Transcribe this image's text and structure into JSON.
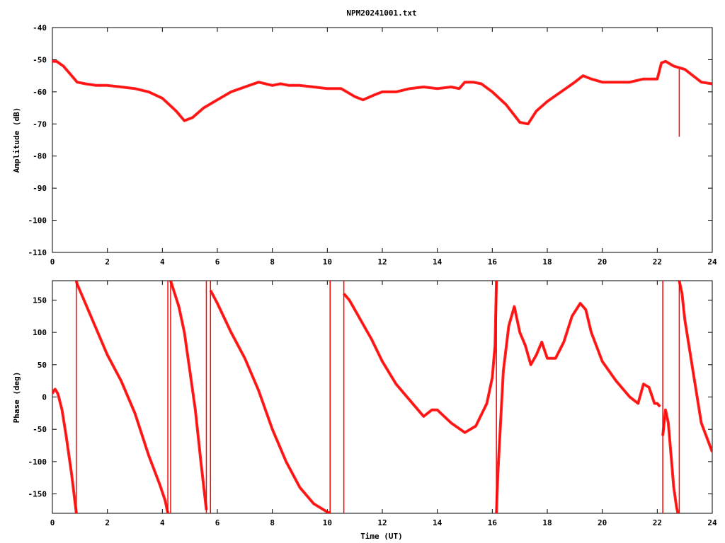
{
  "title": "NPM20241001.txt",
  "chart_data": [
    {
      "type": "line",
      "title": "NPM20241001.txt",
      "xlabel": "",
      "ylabel": "Amplitude (dB)",
      "xlim": [
        0,
        24
      ],
      "ylim": [
        -110,
        -40
      ],
      "x_ticks": [
        "0",
        "2",
        "4",
        "6",
        "8",
        "10",
        "12",
        "14",
        "16",
        "18",
        "20",
        "22",
        "24"
      ],
      "y_ticks": [
        "-40",
        "-50",
        "-60",
        "-70",
        "-80",
        "-90",
        "-100",
        "-110"
      ],
      "grid": false,
      "color": "#ff0000",
      "series": [
        {
          "x": [
            0,
            0.15,
            0.4,
            0.7,
            0.9,
            1.2,
            1.6,
            2.0,
            2.5,
            3.0,
            3.5,
            4.0,
            4.5,
            4.8,
            5.1,
            5.5,
            6.0,
            6.5,
            7.0,
            7.5,
            8.0,
            8.3,
            8.6,
            9.0,
            9.5,
            10.0,
            10.5,
            11.0,
            11.3,
            11.7,
            12.0,
            12.5,
            13.0,
            13.5,
            14.0,
            14.5,
            14.8,
            15.0,
            15.3,
            15.6,
            16.0,
            16.5,
            17.0,
            17.3,
            17.6,
            18.0,
            18.5,
            19.0,
            19.3,
            19.6,
            20.0,
            20.5,
            21.0,
            21.5,
            22.0,
            22.15,
            22.3,
            22.6,
            22.8,
            23.0,
            23.3,
            23.6,
            24.0
          ],
          "y": [
            -50.5,
            -50.5,
            -52,
            -55,
            -57,
            -57.5,
            -58,
            -58,
            -58.5,
            -59,
            -60,
            -62,
            -66,
            -69,
            -68,
            -65,
            -62.5,
            -60,
            -58.5,
            -57,
            -58,
            -57.5,
            -58,
            -58,
            -58.5,
            -59,
            -59,
            -61.5,
            -62.5,
            -61,
            -60,
            -60,
            -59,
            -58.5,
            -59,
            -58.5,
            -59,
            -57,
            -57,
            -57.5,
            -60,
            -64,
            -69.5,
            -70,
            -66,
            -63,
            -60,
            -57,
            -55,
            -56,
            -57,
            -57,
            -57,
            -56,
            -56,
            -51,
            -50.5,
            -52,
            -52.5,
            -53,
            -55,
            -57,
            -57.5
          ]
        }
      ],
      "annotations": [
        {
          "x": 22.8,
          "y_from": -53,
          "y_to": -74
        }
      ]
    },
    {
      "type": "line",
      "title": "",
      "xlabel": "Time (UT)",
      "ylabel": "Phase (deg)",
      "xlim": [
        0,
        24
      ],
      "ylim": [
        -180,
        180
      ],
      "x_ticks": [
        "0",
        "2",
        "4",
        "6",
        "8",
        "10",
        "12",
        "14",
        "16",
        "18",
        "20",
        "22",
        "24"
      ],
      "y_ticks": [
        "150",
        "100",
        "50",
        "0",
        "-50",
        "-100",
        "-150"
      ],
      "grid": false,
      "color": "#ff0000",
      "series": [
        {
          "segments": [
            {
              "x": [
                0,
                0.05,
                0.1,
                0.2,
                0.35,
                0.5,
                0.7,
                0.87
              ],
              "y": [
                5,
                10,
                12,
                5,
                -20,
                -60,
                -120,
                -180
              ]
            },
            {
              "x": [
                0.87,
                0.9,
                1.2,
                1.6,
                2.0,
                2.5,
                3.0,
                3.5,
                3.9,
                4.1,
                4.2
              ],
              "y": [
                180,
                175,
                145,
                105,
                65,
                25,
                -25,
                -90,
                -135,
                -160,
                -180
              ]
            },
            {
              "x": [
                4.3,
                4.45,
                4.6,
                4.8,
                5.0,
                5.2,
                5.4,
                5.6
              ],
              "y": [
                180,
                160,
                140,
                100,
                40,
                -20,
                -100,
                -175
              ]
            },
            {
              "x": [
                5.75,
                6.0,
                6.5,
                7.0,
                7.5,
                8.0,
                8.5,
                9.0,
                9.5,
                10.0,
                10.1
              ],
              "y": [
                165,
                145,
                100,
                60,
                10,
                -50,
                -100,
                -140,
                -165,
                -178,
                -180
              ]
            },
            {
              "x": [
                10.6,
                10.8,
                11.2,
                11.6,
                12.0,
                12.5,
                13.0,
                13.5,
                13.8,
                14.0,
                14.5,
                15.0,
                15.4,
                15.8,
                16.0,
                16.1,
                16.15
              ],
              "y": [
                160,
                150,
                120,
                90,
                55,
                20,
                -5,
                -30,
                -20,
                -20,
                -40,
                -55,
                -45,
                -10,
                30,
                80,
                180
              ]
            },
            {
              "x": [
                16.15,
                16.2,
                16.4,
                16.6,
                16.8,
                17.0,
                17.2,
                17.4,
                17.6,
                17.8,
                18.0,
                18.3,
                18.6,
                18.9,
                19.2,
                19.4,
                19.6,
                20.0,
                20.5,
                21.0,
                21.3,
                21.5,
                21.7,
                21.9,
                22.0,
                22.1
              ],
              "y": [
                -180,
                -120,
                40,
                110,
                140,
                100,
                80,
                50,
                65,
                85,
                60,
                60,
                85,
                125,
                145,
                135,
                100,
                55,
                25,
                0,
                -10,
                20,
                15,
                -10,
                -10,
                -15
              ]
            },
            {
              "x": [
                22.2,
                22.3,
                22.4,
                22.5,
                22.6,
                22.7,
                22.75
              ],
              "y": [
                -60,
                -20,
                -40,
                -90,
                -140,
                -170,
                -180
              ]
            },
            {
              "x": [
                22.8,
                22.9,
                23.0,
                23.3,
                23.6,
                24.0
              ],
              "y": [
                180,
                160,
                120,
                40,
                -40,
                -85
              ]
            }
          ]
        }
      ],
      "annotations": [
        {
          "x": 0.87,
          "y_from": -180,
          "y_to": 180
        },
        {
          "x": 4.2,
          "y_from": -180,
          "y_to": 180
        },
        {
          "x": 4.3,
          "y_from": -180,
          "y_to": 180
        },
        {
          "x": 5.6,
          "y_from": -180,
          "y_to": 180
        },
        {
          "x": 5.75,
          "y_from": -180,
          "y_to": 180
        },
        {
          "x": 10.1,
          "y_from": -180,
          "y_to": 180
        },
        {
          "x": 10.6,
          "y_from": -180,
          "y_to": 180
        },
        {
          "x": 16.15,
          "y_from": -180,
          "y_to": 180
        },
        {
          "x": 22.2,
          "y_from": -180,
          "y_to": 180
        },
        {
          "x": 22.8,
          "y_from": -180,
          "y_to": 180
        }
      ]
    }
  ]
}
